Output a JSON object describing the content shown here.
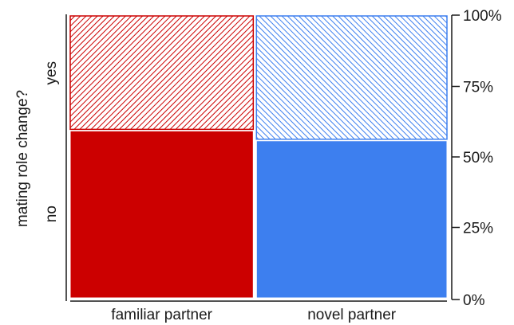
{
  "chart_data": {
    "type": "mosaic",
    "title": "",
    "xlabel": "",
    "ylabel": "mating role change?",
    "categories": [
      "familiar partner",
      "novel partner"
    ],
    "column_widths": [
      0.49,
      0.51
    ],
    "levels": [
      "no",
      "yes"
    ],
    "series": [
      {
        "name": "no",
        "values": [
          0.595,
          0.56
        ]
      },
      {
        "name": "yes",
        "values": [
          0.405,
          0.44
        ]
      }
    ],
    "y_ticks": [
      "0%",
      "25%",
      "50%",
      "75%",
      "100%"
    ],
    "ylim": [
      0,
      1
    ],
    "grid": false,
    "legend": "none"
  },
  "colors": {
    "familiar partner": "#cc0000",
    "novel partner": "#3d7fef",
    "background": "#ffffff",
    "axis": "#1a1a1a",
    "hatch_style": "diagonal stripes on white for the 'yes' level"
  }
}
